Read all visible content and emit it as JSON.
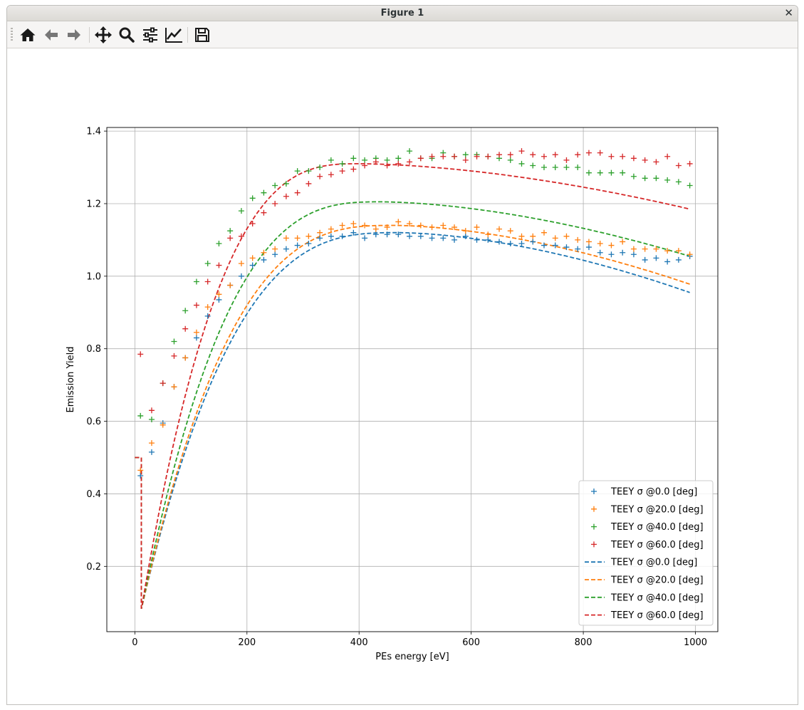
{
  "window": {
    "title": "Figure 1",
    "close_glyph": "✕"
  },
  "toolbar": {
    "buttons": [
      {
        "name": "home-icon",
        "label": "Home"
      },
      {
        "name": "back-icon",
        "label": "Back"
      },
      {
        "name": "forward-icon",
        "label": "Forward"
      },
      {
        "name": "pan-icon",
        "label": "Pan"
      },
      {
        "name": "zoom-icon",
        "label": "Zoom"
      },
      {
        "name": "subplots-icon",
        "label": "Subplots"
      },
      {
        "name": "axes-edit-icon",
        "label": "Customize"
      },
      {
        "name": "save-icon",
        "label": "Save"
      }
    ]
  },
  "chart_data": {
    "type": "scatter",
    "title": "",
    "xlabel": "PEs energy [eV]",
    "ylabel": "Emission Yield",
    "xlim": [
      -50,
      1040
    ],
    "ylim": [
      0.02,
      1.41
    ],
    "xticks": [
      0,
      200,
      400,
      600,
      800,
      1000
    ],
    "yticks": [
      0.2,
      0.4,
      0.6,
      0.8,
      1.0,
      1.2,
      1.4
    ],
    "grid": true,
    "legend_position": "lower-right",
    "x": [
      10,
      30,
      50,
      70,
      90,
      110,
      130,
      150,
      170,
      190,
      210,
      230,
      250,
      270,
      290,
      310,
      330,
      350,
      370,
      390,
      410,
      430,
      450,
      470,
      490,
      510,
      530,
      550,
      570,
      590,
      610,
      630,
      650,
      670,
      690,
      710,
      730,
      750,
      770,
      790,
      810,
      830,
      850,
      870,
      890,
      910,
      930,
      950,
      970,
      990
    ],
    "series": [
      {
        "name": "TEEY σ @0.0 [deg]",
        "kind": "markers",
        "color": "#1f77b4",
        "values": [
          0.45,
          0.515,
          0.595,
          0.695,
          0.775,
          0.83,
          0.89,
          0.935,
          0.975,
          1.0,
          1.03,
          1.045,
          1.06,
          1.075,
          1.085,
          1.09,
          1.105,
          1.11,
          1.11,
          1.12,
          1.105,
          1.115,
          1.115,
          1.115,
          1.11,
          1.11,
          1.105,
          1.105,
          1.1,
          1.11,
          1.1,
          1.1,
          1.095,
          1.09,
          1.09,
          1.095,
          1.085,
          1.085,
          1.08,
          1.075,
          1.08,
          1.065,
          1.06,
          1.065,
          1.06,
          1.045,
          1.05,
          1.04,
          1.045,
          1.055
        ]
      },
      {
        "name": "TEEY σ @20.0 [deg]",
        "kind": "markers",
        "color": "#ff7f0e",
        "values": [
          0.465,
          0.54,
          0.59,
          0.695,
          0.775,
          0.845,
          0.915,
          0.95,
          0.975,
          1.035,
          1.05,
          1.065,
          1.075,
          1.105,
          1.105,
          1.11,
          1.12,
          1.13,
          1.14,
          1.145,
          1.14,
          1.13,
          1.135,
          1.15,
          1.145,
          1.14,
          1.135,
          1.14,
          1.135,
          1.125,
          1.135,
          1.115,
          1.13,
          1.125,
          1.11,
          1.11,
          1.12,
          1.105,
          1.11,
          1.1,
          1.095,
          1.09,
          1.085,
          1.095,
          1.075,
          1.075,
          1.075,
          1.07,
          1.07,
          1.06
        ]
      },
      {
        "name": "TEEY σ @40.0 [deg]",
        "kind": "markers",
        "color": "#2ca02c",
        "values": [
          0.615,
          0.605,
          0.705,
          0.82,
          0.905,
          0.985,
          1.035,
          1.09,
          1.125,
          1.18,
          1.215,
          1.23,
          1.25,
          1.255,
          1.29,
          1.29,
          1.3,
          1.32,
          1.31,
          1.325,
          1.32,
          1.325,
          1.32,
          1.325,
          1.345,
          1.325,
          1.325,
          1.34,
          1.33,
          1.335,
          1.335,
          1.33,
          1.325,
          1.32,
          1.31,
          1.305,
          1.3,
          1.3,
          1.3,
          1.3,
          1.285,
          1.285,
          1.285,
          1.285,
          1.275,
          1.27,
          1.27,
          1.265,
          1.26,
          1.25
        ]
      },
      {
        "name": "TEEY σ @60.0 [deg]",
        "kind": "markers",
        "color": "#d62728",
        "values": [
          0.785,
          0.63,
          0.705,
          0.78,
          0.855,
          0.92,
          0.985,
          1.03,
          1.105,
          1.11,
          1.145,
          1.175,
          1.2,
          1.22,
          1.23,
          1.255,
          1.275,
          1.28,
          1.29,
          1.295,
          1.305,
          1.315,
          1.305,
          1.31,
          1.315,
          1.325,
          1.33,
          1.33,
          1.33,
          1.32,
          1.33,
          1.33,
          1.335,
          1.335,
          1.345,
          1.335,
          1.33,
          1.335,
          1.32,
          1.335,
          1.34,
          1.34,
          1.33,
          1.33,
          1.325,
          1.32,
          1.315,
          1.33,
          1.305,
          1.31
        ]
      },
      {
        "name": "TEEY σ @0.0 [deg]",
        "kind": "dashed",
        "color": "#1f77b4",
        "peak": 1.12,
        "end": 0.955
      },
      {
        "name": "TEEY σ @20.0 [deg]",
        "kind": "dashed",
        "color": "#ff7f0e",
        "peak": 1.14,
        "end": 0.978
      },
      {
        "name": "TEEY σ @40.0 [deg]",
        "kind": "dashed",
        "color": "#2ca02c",
        "peak": 1.205,
        "end": 1.055
      },
      {
        "name": "TEEY σ @60.0 [deg]",
        "kind": "dashed",
        "color": "#d62728",
        "peak": 1.31,
        "end": 1.185
      }
    ],
    "dashed_shape": {
      "start_value": 0.5,
      "min_value": 0.085,
      "x_min": 12,
      "x_peak_low": 400,
      "x_peak_high": 470,
      "x_end": 990
    }
  }
}
